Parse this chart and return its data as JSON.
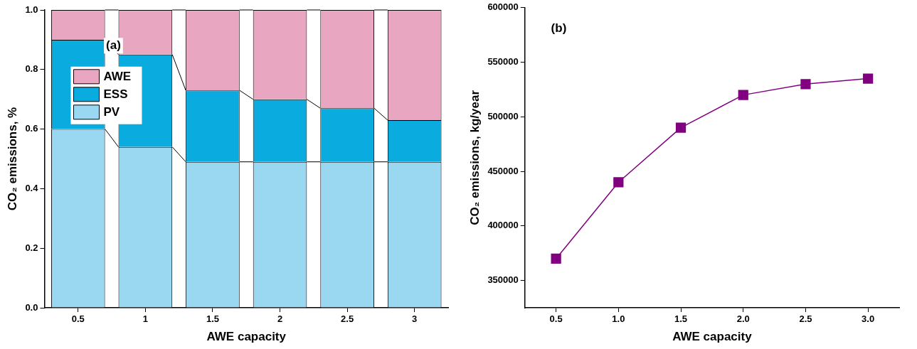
{
  "chart_data": [
    {
      "type": "bar",
      "stacked": true,
      "categories": [
        "0.5",
        "1",
        "1.5",
        "2",
        "2.5",
        "3"
      ],
      "xlabel": "AWE capacity",
      "ylabel": "CO₂ emissions, %",
      "ylim": [
        0,
        1
      ],
      "yticks": [
        {
          "value": 0,
          "label": "0.0"
        },
        0.2,
        0.4,
        0.6,
        0.8,
        {
          "value": 1,
          "label": "1.0"
        }
      ],
      "grid": false,
      "legend": "top left",
      "annotations": [
        "(a)"
      ],
      "series": [
        {
          "name": "PV",
          "color": "#9ad7f1",
          "values": [
            0.6,
            0.54,
            0.49,
            0.49,
            0.49,
            0.49
          ]
        },
        {
          "name": "ESS",
          "color": "#0aace0",
          "values": [
            0.3,
            0.31,
            0.24,
            0.21,
            0.18,
            0.14
          ]
        },
        {
          "name": "AWE",
          "color": "#e9a6c1",
          "values": [
            0.1,
            0.15,
            0.27,
            0.3,
            0.33,
            0.37
          ]
        }
      ]
    },
    {
      "type": "line",
      "x": [
        0.5,
        1,
        1.5,
        2,
        2.5,
        3
      ],
      "xlabel": "AWE capacity",
      "ylabel": "CO₂ emissions, kg/year",
      "xlim": [
        0.25,
        3.25
      ],
      "xticks": [
        0.5,
        {
          "value": 1,
          "label": "1.0"
        },
        1.5,
        {
          "value": 2,
          "label": "2.0"
        },
        2.5,
        {
          "value": 3,
          "label": "3.0"
        }
      ],
      "ylim": [
        325000,
        600000
      ],
      "yticks": [
        350000,
        400000,
        450000,
        500000,
        550000,
        600000
      ],
      "grid": false,
      "legend": false,
      "marker": "square",
      "line_style": "solid",
      "annotations": [
        "(b)"
      ],
      "series": [
        {
          "color": "#800080",
          "values": [
            370000,
            440000,
            490000,
            520000,
            530000,
            535000
          ]
        }
      ]
    }
  ]
}
